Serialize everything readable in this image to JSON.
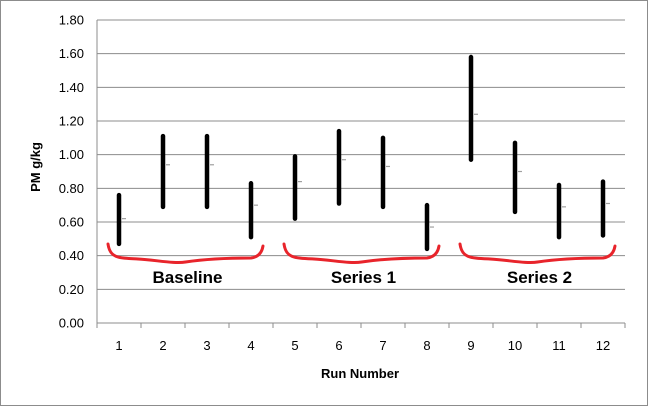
{
  "chart_data": {
    "type": "range",
    "xlabel": "Run Number",
    "ylabel": "PM g/kg",
    "ylim": [
      0,
      1.8
    ],
    "y_ticks": [
      "0.00",
      "0.20",
      "0.40",
      "0.60",
      "0.80",
      "1.00",
      "1.20",
      "1.40",
      "1.60",
      "1.80"
    ],
    "categories": [
      "1",
      "2",
      "3",
      "4",
      "5",
      "6",
      "7",
      "8",
      "9",
      "10",
      "11",
      "12"
    ],
    "low": [
      0.47,
      0.69,
      0.69,
      0.51,
      0.62,
      0.71,
      0.69,
      0.44,
      0.97,
      0.66,
      0.51,
      0.52
    ],
    "high": [
      0.76,
      1.11,
      1.11,
      0.83,
      0.99,
      1.14,
      1.1,
      0.7,
      1.58,
      1.07,
      0.82,
      0.84
    ],
    "mean": [
      0.62,
      0.94,
      0.94,
      0.7,
      0.84,
      0.97,
      0.93,
      0.57,
      1.24,
      0.9,
      0.69,
      0.71
    ],
    "grid": true,
    "groups": [
      {
        "label": "Baseline",
        "runs": [
          1,
          4
        ]
      },
      {
        "label": "Series 1",
        "runs": [
          5,
          8
        ]
      },
      {
        "label": "Series 2",
        "runs": [
          9,
          12
        ]
      }
    ],
    "colors": {
      "bar": "#000000",
      "bracket": "#e8242b",
      "grid": "#8c8c8c"
    }
  }
}
